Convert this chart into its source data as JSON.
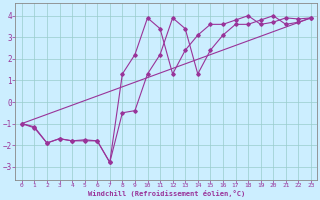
{
  "xlabel": "Windchill (Refroidissement éolien,°C)",
  "bg_color": "#cceeff",
  "line_color": "#993399",
  "xlim": [
    -0.5,
    23.5
  ],
  "ylim": [
    -3.6,
    4.6
  ],
  "xticks": [
    0,
    1,
    2,
    3,
    4,
    5,
    6,
    7,
    8,
    9,
    10,
    11,
    12,
    13,
    14,
    15,
    16,
    17,
    18,
    19,
    20,
    21,
    22,
    23
  ],
  "yticks": [
    -3,
    -2,
    -1,
    0,
    1,
    2,
    3,
    4
  ],
  "series1_x": [
    0,
    1,
    2,
    3,
    4,
    5,
    6,
    7,
    8,
    9,
    10,
    11,
    12,
    13,
    14,
    15,
    16,
    17,
    18,
    19,
    20,
    21,
    22,
    23
  ],
  "series1_y": [
    -1.0,
    -1.2,
    -1.9,
    -1.7,
    -1.8,
    -1.8,
    -1.8,
    -2.8,
    -0.5,
    -0.4,
    1.3,
    2.2,
    3.9,
    3.4,
    1.3,
    2.4,
    3.1,
    3.6,
    3.6,
    3.8,
    4.0,
    3.6,
    3.7,
    3.9
  ],
  "series2_x": [
    0,
    1,
    2,
    3,
    4,
    5,
    6,
    7,
    8,
    9,
    10,
    11,
    12,
    13,
    14,
    15,
    16,
    17,
    18,
    19,
    20,
    21,
    22,
    23
  ],
  "series2_y": [
    -1.0,
    -1.15,
    -1.9,
    -1.7,
    -1.8,
    -1.75,
    -1.8,
    -2.8,
    1.3,
    2.2,
    3.9,
    3.4,
    1.3,
    2.4,
    3.1,
    3.6,
    3.6,
    3.8,
    4.0,
    3.6,
    3.7,
    3.9,
    3.85,
    3.9
  ],
  "series3_x": [
    0,
    23
  ],
  "series3_y": [
    -1.0,
    3.9
  ],
  "grid_color": "#99cccc",
  "tick_color": "#993399",
  "xlabel_color": "#993399"
}
